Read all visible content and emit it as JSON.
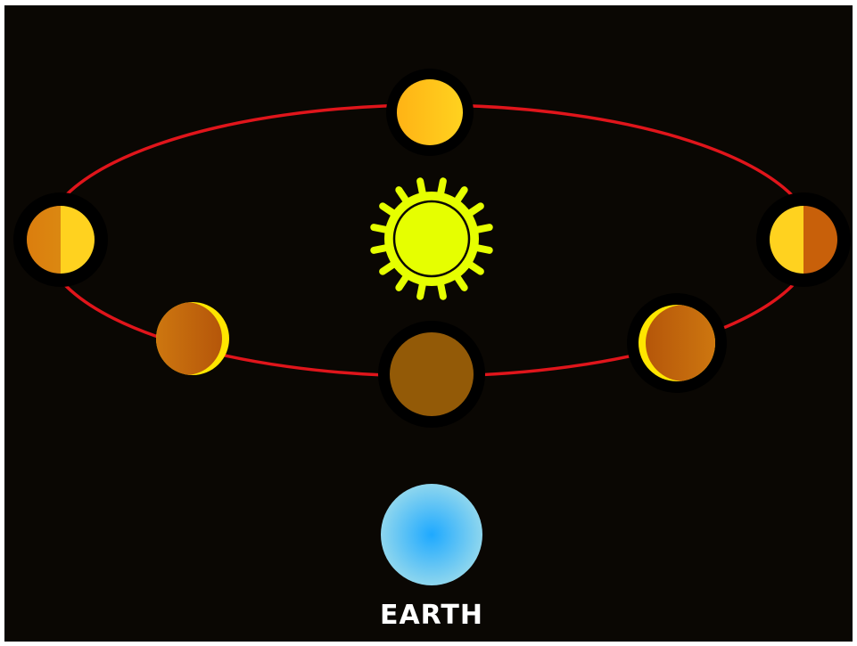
{
  "earth": {
    "label": "EARTH"
  },
  "colors": {
    "background": "#0a0703",
    "orbit": "#e0151b",
    "sun": "#e6ff00",
    "sun_outline": "#0a0703",
    "earth_center": "#1ea9ff",
    "earth_edge": "#8ed6ee",
    "moon_lit_bright": "#ffd21f",
    "moon_lit_orange": "#ffb315",
    "moon_dark": "#c8680a",
    "moon_new": "#935a07",
    "label": "#ffffff"
  },
  "moon_phases": [
    {
      "name": "full",
      "lit_fraction": 1.0
    },
    {
      "name": "first-quarter",
      "lit_fraction": 0.5
    },
    {
      "name": "third-quarter",
      "lit_fraction": 0.5
    },
    {
      "name": "waxing-crescent",
      "lit_fraction": 0.1
    },
    {
      "name": "waning-crescent",
      "lit_fraction": 0.1
    },
    {
      "name": "new",
      "lit_fraction": 0.0
    }
  ]
}
